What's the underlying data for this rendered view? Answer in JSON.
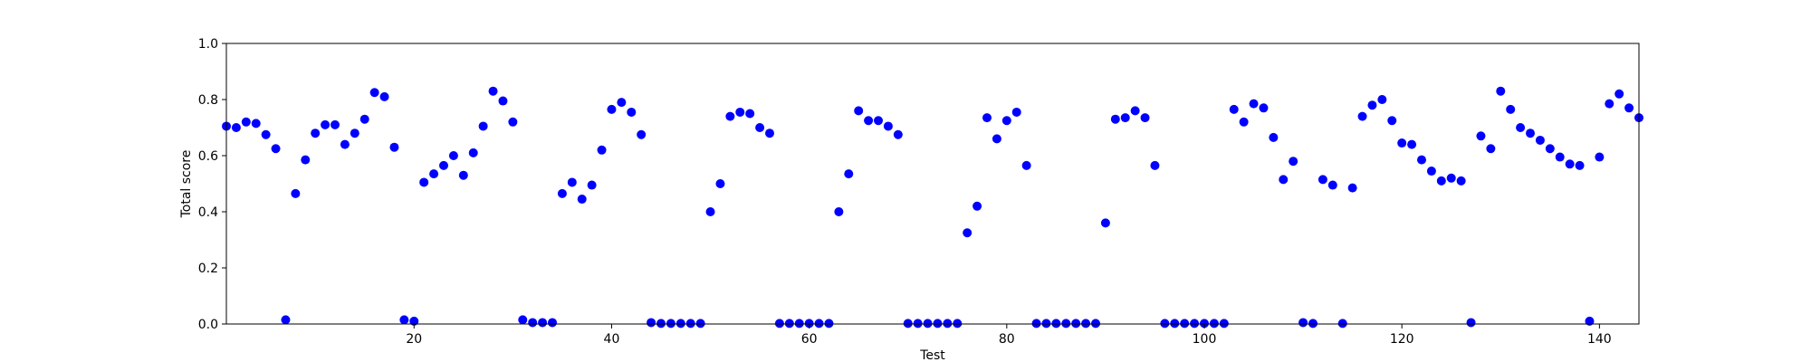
{
  "chart_data": {
    "type": "scatter",
    "title": "",
    "xlabel": "Test",
    "ylabel": "Total score",
    "xlim": [
      1,
      144
    ],
    "ylim": [
      0.0,
      1.0
    ],
    "xticks": [
      20,
      40,
      60,
      80,
      100,
      120,
      140
    ],
    "yticks": [
      0.0,
      0.2,
      0.4,
      0.6,
      0.8,
      1.0
    ],
    "xtick_labels": [
      "20",
      "40",
      "60",
      "80",
      "100",
      "120",
      "140"
    ],
    "ytick_labels": [
      "0.0",
      "0.2",
      "0.4",
      "0.6",
      "0.8",
      "1.0"
    ],
    "grid": false,
    "marker_color": "#0000ff",
    "x": [
      1,
      2,
      3,
      4,
      5,
      6,
      7,
      8,
      9,
      10,
      11,
      12,
      13,
      14,
      15,
      16,
      17,
      18,
      19,
      20,
      21,
      22,
      23,
      24,
      25,
      26,
      27,
      28,
      29,
      30,
      31,
      32,
      33,
      34,
      35,
      36,
      37,
      38,
      39,
      40,
      41,
      42,
      43,
      44,
      45,
      46,
      47,
      48,
      49,
      50,
      51,
      52,
      53,
      54,
      55,
      56,
      57,
      58,
      59,
      60,
      61,
      62,
      63,
      64,
      65,
      66,
      67,
      68,
      69,
      70,
      71,
      72,
      73,
      74,
      75,
      76,
      77,
      78,
      79,
      80,
      81,
      82,
      83,
      84,
      85,
      86,
      87,
      88,
      89,
      90,
      91,
      92,
      93,
      94,
      95,
      96,
      97,
      98,
      99,
      100,
      101,
      102,
      103,
      104,
      105,
      106,
      107,
      108,
      109,
      110,
      111,
      112,
      113,
      114,
      115,
      116,
      117,
      118,
      119,
      120,
      121,
      122,
      123,
      124,
      125,
      126,
      127,
      128,
      129,
      130,
      131,
      132,
      133,
      134,
      135,
      136,
      137,
      138,
      139,
      140,
      141,
      142,
      143,
      144
    ],
    "y": [
      0.705,
      0.7,
      0.72,
      0.715,
      0.675,
      0.625,
      0.015,
      0.465,
      0.585,
      0.68,
      0.71,
      0.71,
      0.64,
      0.68,
      0.73,
      0.825,
      0.81,
      0.63,
      0.015,
      0.01,
      0.505,
      0.535,
      0.565,
      0.6,
      0.53,
      0.61,
      0.705,
      0.83,
      0.795,
      0.72,
      0.015,
      0.005,
      0.005,
      0.005,
      0.465,
      0.505,
      0.445,
      0.495,
      0.62,
      0.765,
      0.79,
      0.755,
      0.675,
      0.005,
      0.002,
      0.002,
      0.002,
      0.002,
      0.002,
      0.4,
      0.5,
      0.74,
      0.755,
      0.75,
      0.7,
      0.68,
      0.002,
      0.002,
      0.002,
      0.002,
      0.002,
      0.002,
      0.4,
      0.535,
      0.76,
      0.725,
      0.725,
      0.705,
      0.675,
      0.002,
      0.002,
      0.002,
      0.002,
      0.002,
      0.002,
      0.325,
      0.42,
      0.735,
      0.66,
      0.725,
      0.755,
      0.565,
      0.002,
      0.002,
      0.002,
      0.002,
      0.002,
      0.002,
      0.002,
      0.36,
      0.73,
      0.735,
      0.76,
      0.735,
      0.565,
      0.002,
      0.002,
      0.002,
      0.002,
      0.002,
      0.002,
      0.002,
      0.765,
      0.72,
      0.785,
      0.77,
      0.665,
      0.515,
      0.58,
      0.005,
      0.002,
      0.515,
      0.495,
      0.002,
      0.485,
      0.74,
      0.78,
      0.8,
      0.725,
      0.645,
      0.64,
      0.585,
      0.545,
      0.51,
      0.52,
      0.51,
      0.005,
      0.67,
      0.625,
      0.83,
      0.765,
      0.7,
      0.68,
      0.655,
      0.625,
      0.595,
      0.57,
      0.565,
      0.01,
      0.595,
      0.785,
      0.82,
      0.77,
      0.735
    ]
  }
}
